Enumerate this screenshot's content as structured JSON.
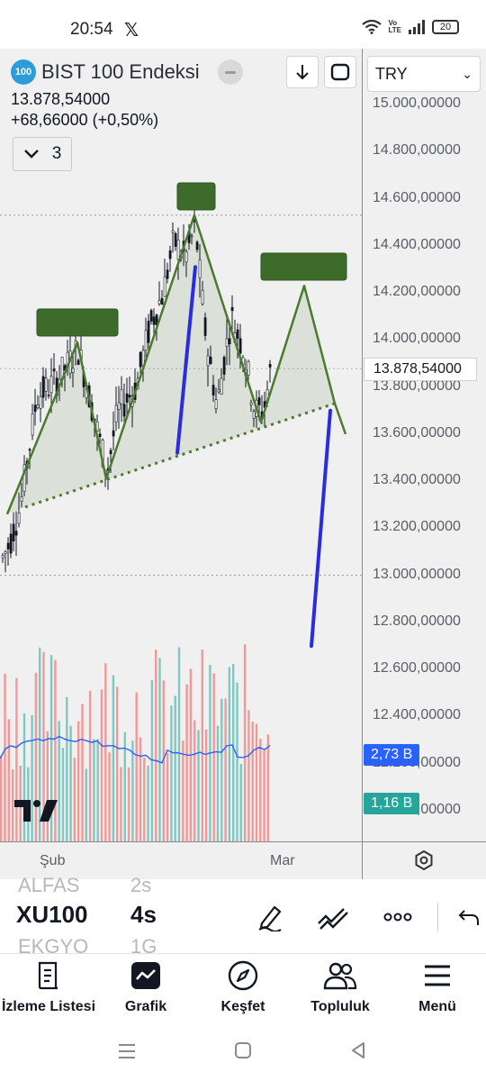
{
  "status_bar": {
    "time": "20:54",
    "app_glyph": "𝕏",
    "volte": "Vo LTE",
    "battery": "20"
  },
  "symbol": {
    "logo_text": "100",
    "title": "BIST 100 Endeksi",
    "price": "13.878,54000",
    "change": "+68,66000 (+0,50%)",
    "collapse_count": "3"
  },
  "currency": {
    "selected": "TRY"
  },
  "price_axis": {
    "labels": [
      "15.000,00000",
      "14.800,00000",
      "14.600,00000",
      "14.400,00000",
      "14.200,00000",
      "14.000,00000",
      "13.800,00000",
      "13.600,00000",
      "13.400,00000",
      "13.200,00000",
      "13.000,00000",
      "12.800,00000",
      "12.600,00000",
      "12.400,00000",
      "12.200,00000",
      "12.000,00000"
    ],
    "current_price": "13.878,54000"
  },
  "volume_badges": {
    "avg": "2,73 B",
    "last": "1,16 B"
  },
  "time_axis": {
    "labels": [
      "Şub",
      "Mar"
    ]
  },
  "chart_data": {
    "type": "candlestick",
    "ylim": [
      11950,
      15080
    ],
    "current_price": 13878.54,
    "annotations": {
      "head_and_shoulders": {
        "left_shoulder": 13990,
        "head": 14530,
        "right_shoulder_projection": 14230,
        "neckline_start": 13290,
        "neckline_end": 13730
      },
      "target_projection": {
        "from": 13700,
        "to": 12700
      }
    },
    "colors": {
      "up": "#26a69a",
      "down": "#ef5350",
      "drawing": "#4a7a2e",
      "target_line": "#2b2bdf",
      "volume_ma": "#2962ff"
    }
  },
  "toolbar": {
    "prev_symbol": "ALFAS",
    "symbol": "XU100",
    "next_symbol": "EKGYO",
    "prev_interval": "2s",
    "interval": "4s",
    "next_interval": "1G"
  },
  "bottom_nav": [
    {
      "label": "İzleme Listesi",
      "icon": "watchlist-icon"
    },
    {
      "label": "Grafik",
      "icon": "chart-icon"
    },
    {
      "label": "Keşfet",
      "icon": "compass-icon"
    },
    {
      "label": "Topluluk",
      "icon": "community-icon"
    },
    {
      "label": "Menü",
      "icon": "menu-icon"
    }
  ]
}
